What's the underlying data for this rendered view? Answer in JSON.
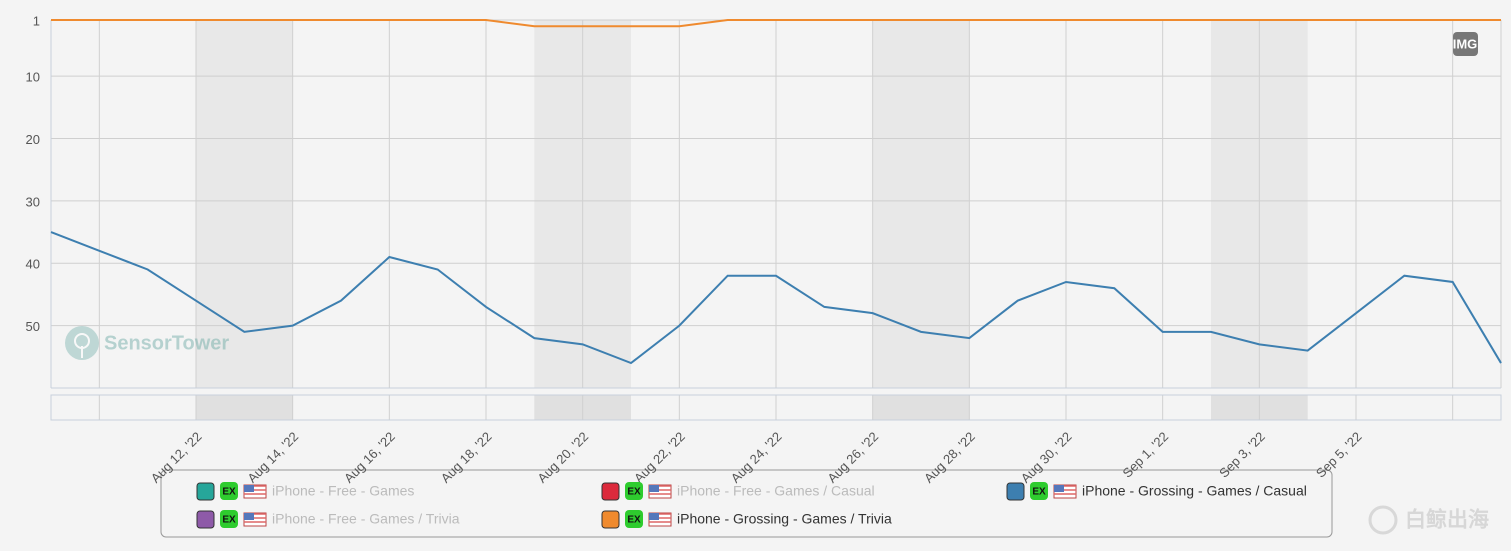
{
  "chart_data": {
    "type": "line",
    "categories": [
      null,
      null,
      null,
      "Aug 12, '22",
      null,
      "Aug 14, '22",
      null,
      "Aug 16, '22",
      null,
      "Aug 18, '22",
      null,
      "Aug 20, '22",
      null,
      "Aug 22, '22",
      null,
      "Aug 24, '22",
      null,
      "Aug 26, '22",
      null,
      "Aug 28, '22",
      null,
      "Aug 30, '22",
      null,
      "Sep 1, '22",
      null,
      "Sep 3, '22",
      null,
      "Sep 5, '22",
      null,
      null,
      null
    ],
    "ylim": [
      1,
      60
    ],
    "y_inverted": true,
    "yticks": [
      1,
      10,
      20,
      30,
      40,
      50
    ],
    "grid": true,
    "series": [
      {
        "name": "iPhone - Free - Games",
        "color": "#26a69a",
        "visible": false
      },
      {
        "name": "iPhone - Free - Games / Casual",
        "color": "#dc2a3c",
        "visible": false
      },
      {
        "name": "iPhone - Grossing - Games / Casual",
        "color": "#3d7fb0",
        "visible": true,
        "values": [
          35,
          38,
          41,
          46,
          51,
          50,
          46,
          39,
          41,
          47,
          52,
          53,
          56,
          50,
          42,
          42,
          47,
          48,
          51,
          52,
          46,
          43,
          44,
          51,
          51,
          53,
          54,
          48,
          42,
          43,
          56
        ]
      },
      {
        "name": "iPhone - Free - Games / Trivia",
        "color": "#8e5aa8",
        "visible": false
      },
      {
        "name": "iPhone - Grossing - Games / Trivia",
        "color": "#ef8a2e",
        "visible": true,
        "values": [
          1,
          1,
          1,
          1,
          1,
          1,
          1,
          1,
          1,
          1,
          2,
          2,
          2,
          2,
          1,
          1,
          1,
          1,
          1,
          1,
          1,
          1,
          1,
          1,
          1,
          1,
          1,
          1,
          1,
          1,
          1
        ]
      }
    ],
    "legend_badge": "EX",
    "corner_badge": "IMG",
    "watermark": "SensorTower",
    "footer_watermark": "白鲸出海"
  }
}
